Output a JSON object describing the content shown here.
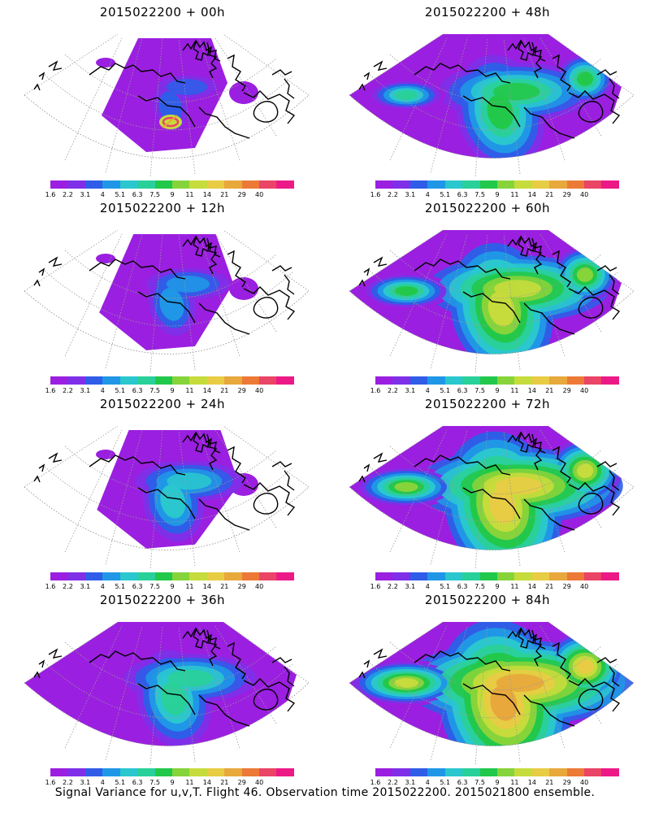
{
  "colorbar": {
    "colors": [
      "#9b1fe0",
      "#7f2fe8",
      "#2f5de8",
      "#1f97e6",
      "#2ac7cf",
      "#2ad09a",
      "#22c84a",
      "#86d43a",
      "#c6dc3c",
      "#e8cc44",
      "#e8a83c",
      "#ec7a36",
      "#ea4466",
      "#ec1a86"
    ],
    "labels": [
      "1.6",
      "2.2",
      "3.1",
      "4",
      "5.1",
      "6.3",
      "7.5",
      "9",
      "11",
      "14",
      "21",
      "29",
      "40"
    ]
  },
  "panels": [
    {
      "title": "2015022200  + 00h",
      "col": 0,
      "row": 0,
      "intensity": 0,
      "hotspot": true
    },
    {
      "title": "2015022200  + 12h",
      "col": 0,
      "row": 1,
      "intensity": 1,
      "hotspot": false
    },
    {
      "title": "2015022200  + 24h",
      "col": 0,
      "row": 2,
      "intensity": 2,
      "hotspot": false
    },
    {
      "title": "2015022200  + 36h",
      "col": 0,
      "row": 3,
      "intensity": 3,
      "hotspot": false
    },
    {
      "title": "2015022200  + 48h",
      "col": 1,
      "row": 0,
      "intensity": 4,
      "hotspot": false
    },
    {
      "title": "2015022200  + 60h",
      "col": 1,
      "row": 1,
      "intensity": 5,
      "hotspot": false
    },
    {
      "title": "2015022200  + 72h",
      "col": 1,
      "row": 2,
      "intensity": 6,
      "hotspot": false
    },
    {
      "title": "2015022200  + 84h",
      "col": 1,
      "row": 3,
      "intensity": 7,
      "hotspot": false
    }
  ],
  "footer": "Signal Variance for u,v,T. Flight 46. Observation time 2015022200. 2015021800 ensemble."
}
